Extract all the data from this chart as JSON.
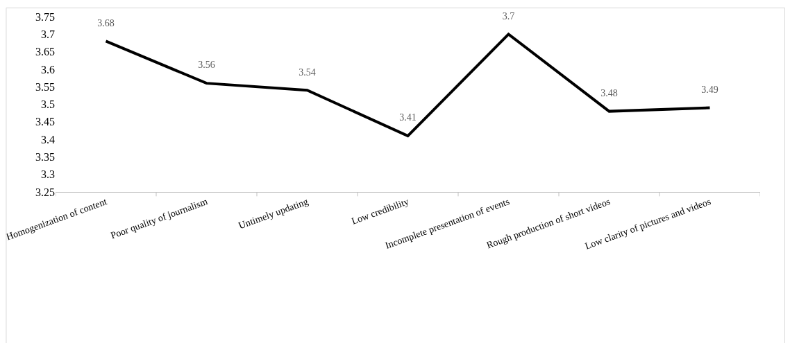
{
  "chart_data": {
    "type": "line",
    "categories": [
      "Homogenization of content",
      "Poor quality of journalism",
      "Untimely updating",
      "Low credibility",
      "Incomplete presentation of events",
      "Rough production of short videos",
      "Low clarity of pictures and videos"
    ],
    "series": [
      {
        "color": "#000000",
        "values": [
          3.68,
          3.56,
          3.54,
          3.41,
          3.7,
          3.48,
          3.49
        ]
      }
    ],
    "ylim": [
      3.25,
      3.75
    ],
    "yticks": [
      3.25,
      3.3,
      3.35,
      3.4,
      3.45,
      3.5,
      3.55,
      3.6,
      3.65,
      3.7,
      3.75
    ],
    "marker": "none",
    "line_style": "solid",
    "data_labels": true
  }
}
